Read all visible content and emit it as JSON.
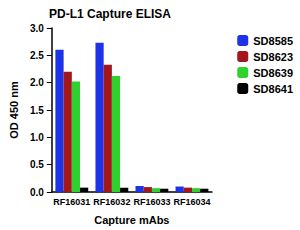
{
  "chart_data": {
    "type": "bar",
    "title": "PD-L1 Capture ELISA",
    "x_label": "Capture mAbs",
    "y_label": "OD 450 nm",
    "categories": [
      "RF16031",
      "RF16032",
      "RF16033",
      "RF16034"
    ],
    "series": [
      {
        "name": "SD8585",
        "color": "#1c33e8",
        "values": [
          2.6,
          2.73,
          0.11,
          0.1
        ]
      },
      {
        "name": "SD8623",
        "color": "#a3161b",
        "values": [
          2.2,
          2.33,
          0.09,
          0.08
        ]
      },
      {
        "name": "SD8639",
        "color": "#2fd12f",
        "values": [
          2.02,
          2.12,
          0.07,
          0.07
        ]
      },
      {
        "name": "SD8641",
        "color": "#000000",
        "values": [
          0.08,
          0.08,
          0.06,
          0.06
        ]
      }
    ],
    "ylim": [
      0,
      3
    ],
    "yticks": [
      {
        "value": 0,
        "label": "0.0"
      },
      0.5,
      {
        "value": 1,
        "label": "1.0"
      },
      1.5,
      {
        "value": 2,
        "label": "2.0"
      },
      2.5,
      {
        "value": 3,
        "label": "3.0"
      }
    ],
    "grid": false,
    "legend": "top-right"
  }
}
